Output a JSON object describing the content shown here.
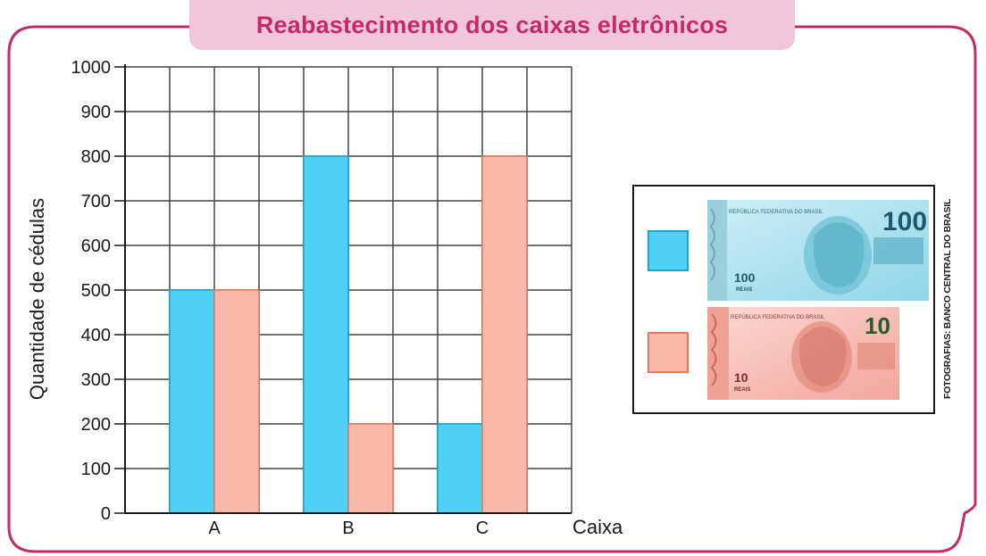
{
  "title": "Reabastecimento dos caixas eletrônicos",
  "colors": {
    "frame": "#c42a6a",
    "title_bg": "#f2c6da",
    "title_text": "#c42a6a",
    "blue": "#4fd1f5",
    "blue_edge": "#13a6d6",
    "salmon": "#f9b8a8",
    "salmon_edge": "#e8755f",
    "grid": "#444444"
  },
  "chart_data": {
    "type": "bar",
    "categories": [
      "A",
      "B",
      "C"
    ],
    "series": [
      {
        "name": "",
        "legend_image": "100-reais-banknote",
        "color": "#4fd1f5",
        "values": [
          500,
          800,
          200
        ]
      },
      {
        "name": "",
        "legend_image": "10-reais-banknote",
        "color": "#f9b8a8",
        "values": [
          500,
          200,
          800
        ]
      }
    ],
    "xlabel": "Caixa",
    "ylabel": "Quantidade de cédulas",
    "ylim": [
      0,
      1000
    ],
    "yticks": [
      "0",
      "100",
      "200",
      "300",
      "400",
      "500",
      "600",
      "700",
      "800",
      "900",
      "1000"
    ],
    "grid": true,
    "legend_position": "right"
  },
  "legend": {
    "note100": {
      "value": "100",
      "header": "REPÚBLICA FEDERATIVA DO BRASIL",
      "small": "100",
      "unit": "REAIS"
    },
    "note10": {
      "value": "10",
      "header": "REPÚBLICA FEDERATIVA DO BRASIL",
      "small": "10",
      "unit": "REAIS"
    }
  },
  "credit": "FOTOGRAFIAS: BANCO CENTRAL DO BRASIL"
}
